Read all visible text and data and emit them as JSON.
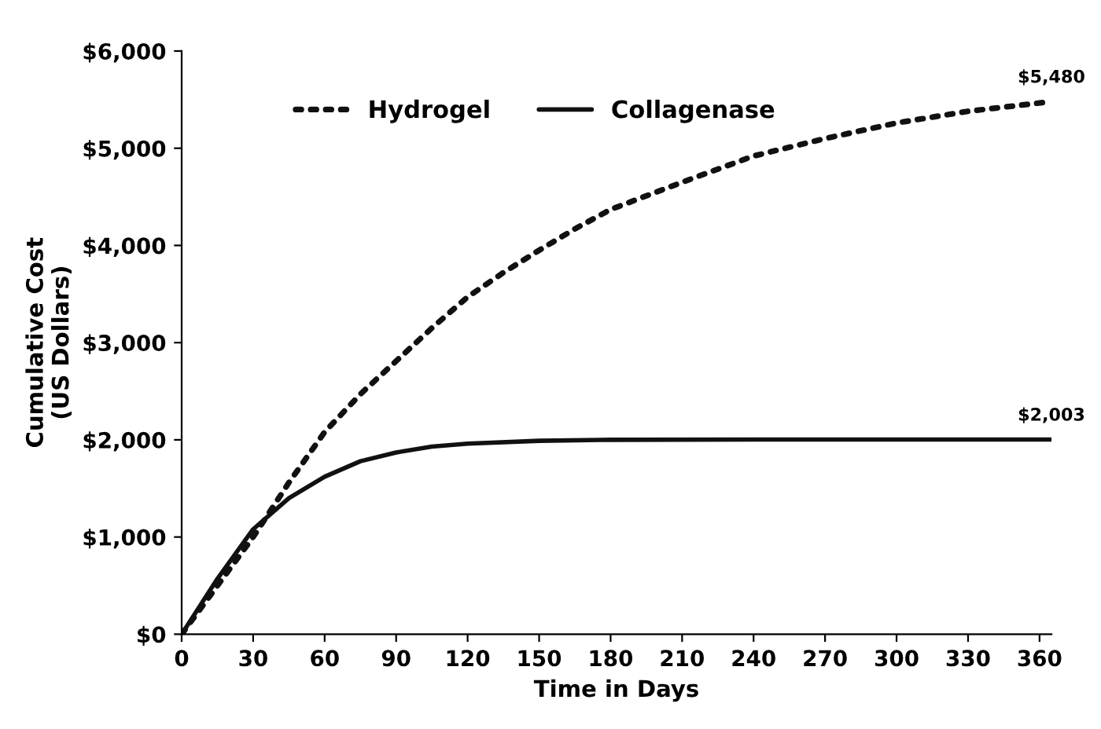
{
  "chart_data": {
    "type": "line",
    "xlabel": "Time in Days",
    "ylabel": "Cumulative Cost\n(US Dollars)",
    "series": [
      {
        "name": "Hydrogel",
        "color": "#111111",
        "line_style": "dotted",
        "x": [
          0,
          15,
          30,
          45,
          60,
          75,
          90,
          105,
          120,
          135,
          150,
          165,
          180,
          210,
          240,
          270,
          300,
          330,
          365
        ],
        "values": [
          0,
          500,
          1000,
          1560,
          2080,
          2470,
          2810,
          3150,
          3470,
          3720,
          3950,
          4170,
          4370,
          4650,
          4920,
          5100,
          5260,
          5380,
          5480
        ]
      },
      {
        "name": "Collagenase",
        "color": "#111111",
        "line_style": "solid",
        "x": [
          0,
          15,
          30,
          45,
          60,
          75,
          90,
          105,
          120,
          150,
          180,
          240,
          300,
          365
        ],
        "values": [
          0,
          570,
          1080,
          1400,
          1620,
          1780,
          1870,
          1930,
          1960,
          1990,
          2000,
          2003,
          2003,
          2003
        ]
      }
    ],
    "annotations": [
      {
        "text": "$5,480",
        "x": 365,
        "y": 5480
      },
      {
        "text": "$2,003",
        "x": 365,
        "y": 2003
      }
    ],
    "xlim": [
      0,
      365
    ],
    "xticks": [
      0,
      30,
      60,
      90,
      120,
      150,
      180,
      210,
      240,
      270,
      300,
      330,
      360
    ],
    "ylim": [
      0,
      6000
    ],
    "yticks": [
      {
        "value": 0,
        "label": "$0"
      },
      {
        "value": 1000,
        "label": "$1,000"
      },
      {
        "value": 2000,
        "label": "$2,000"
      },
      {
        "value": 3000,
        "label": "$3,000"
      },
      {
        "value": 4000,
        "label": "$4,000"
      },
      {
        "value": 5000,
        "label": "$5,000"
      },
      {
        "value": 6000,
        "label": "$6,000"
      }
    ],
    "grid": false,
    "legend": "top left",
    "marker": "none"
  }
}
